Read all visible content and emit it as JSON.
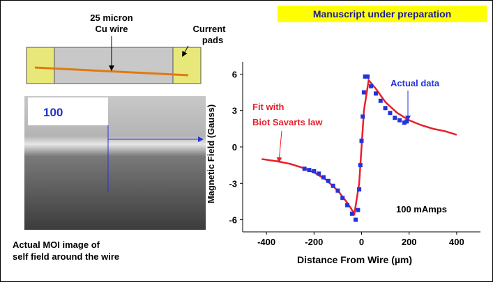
{
  "banner": "Manuscript under preparation",
  "wire_label": [
    "25 micron",
    "Cu wire"
  ],
  "pads_label": [
    "Current",
    "pads"
  ],
  "image_label": "100",
  "caption": [
    "Actual MOI image of",
    "self field around the wire"
  ],
  "chart_data": {
    "type": "line",
    "xlabel": "Distance From Wire (µm)",
    "ylabel": "Magnetic Field (Gauss)",
    "xlim": [
      -500,
      500
    ],
    "ylim": [
      -7,
      7
    ],
    "xticks": [
      -400,
      -200,
      0,
      200,
      400
    ],
    "yticks": [
      -6,
      -3,
      0,
      3,
      6
    ],
    "annotations": {
      "data": "Actual data",
      "fit": [
        "Fit with",
        "Biot Savarts law"
      ],
      "current": "100 mAmps"
    },
    "series": [
      {
        "type": "line",
        "color": "#e8202a",
        "x": [
          -420,
          -350,
          -300,
          -250,
          -200,
          -150,
          -100,
          -60,
          -30,
          -10,
          0,
          10,
          30,
          60,
          100,
          150,
          200,
          250,
          300,
          350,
          400
        ],
        "values": [
          -1.0,
          -1.2,
          -1.4,
          -1.7,
          -2.1,
          -2.7,
          -3.6,
          -4.6,
          -5.5,
          -3.0,
          0,
          3.0,
          5.5,
          4.8,
          3.7,
          2.8,
          2.2,
          1.8,
          1.5,
          1.3,
          1.0
        ]
      },
      {
        "type": "scatter",
        "color": "#2233dd",
        "x": [
          -240,
          -220,
          -200,
          -180,
          -160,
          -140,
          -120,
          -100,
          -80,
          -60,
          -40,
          -25,
          -15,
          -10,
          -5,
          0,
          5,
          10,
          15,
          25,
          40,
          60,
          80,
          100,
          120,
          140,
          160,
          180,
          190
        ],
        "values": [
          -1.8,
          -1.9,
          -2.0,
          -2.2,
          -2.5,
          -2.8,
          -3.2,
          -3.6,
          -4.2,
          -4.8,
          -5.5,
          -6.0,
          -5.2,
          -3.5,
          -1.5,
          0.5,
          2.5,
          4.5,
          5.8,
          5.8,
          5.0,
          4.4,
          3.8,
          3.2,
          2.8,
          2.4,
          2.2,
          2.0,
          2.1
        ]
      }
    ]
  }
}
